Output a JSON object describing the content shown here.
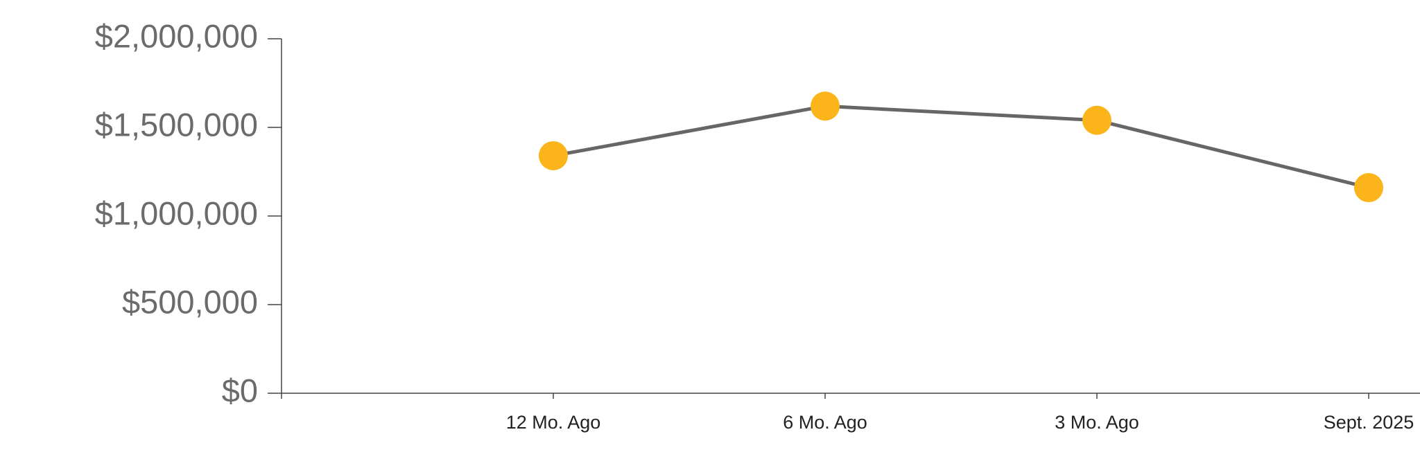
{
  "chart_data": {
    "type": "line",
    "categories": [
      null,
      "12 Mo. Ago",
      "6 Mo. Ago",
      "3 Mo. Ago",
      "Sept. 2025"
    ],
    "values": [
      null,
      1340000,
      1620000,
      1540000,
      1160000
    ],
    "line_color": "#666666",
    "color": "#fbb41a",
    "ylim": [
      0,
      2000000
    ],
    "yticks": [
      {
        "value": 0,
        "label": "$0"
      },
      {
        "value": 500000,
        "label": "$500,000"
      },
      {
        "value": 1000000,
        "label": "$1,000,000"
      },
      {
        "value": 1500000,
        "label": "$1,500,000"
      },
      {
        "value": 2000000,
        "label": "$2,000,000"
      }
    ],
    "grid": false
  }
}
